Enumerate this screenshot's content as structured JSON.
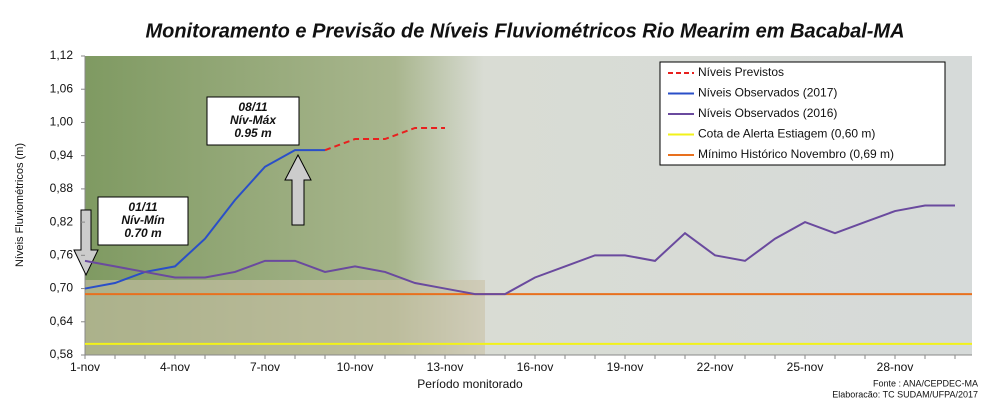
{
  "chart_data": {
    "type": "line",
    "title": "Monitoramento e Previsão de Níveis Fluviométricos Rio Mearim em  Bacabal-MA",
    "y_label": "Níveis Fluviométricos (m)",
    "x_label": "Período monitorado",
    "categories": [
      "1-nov",
      null,
      null,
      "4-nov",
      null,
      null,
      "7-nov",
      null,
      null,
      "10-nov",
      null,
      null,
      "13-nov",
      null,
      null,
      "16-nov",
      null,
      null,
      "19-nov",
      null,
      null,
      "22-nov",
      null,
      null,
      "25-nov",
      null,
      null,
      "28-nov",
      null,
      null
    ],
    "ylim": [
      0.58,
      1.12
    ],
    "yticks": [
      {
        "value": 0.58,
        "label": "0,58"
      },
      {
        "value": 0.64,
        "label": "0,64"
      },
      {
        "value": 0.7,
        "label": "0,70"
      },
      {
        "value": 0.76,
        "label": "0,76"
      },
      {
        "value": 0.82,
        "label": "0,82"
      },
      {
        "value": 0.88,
        "label": "0,88"
      },
      {
        "value": 0.94,
        "label": "0,94"
      },
      {
        "value": 1.0,
        "label": "1,00"
      },
      {
        "value": 1.06,
        "label": "1,06"
      },
      {
        "value": 1.12,
        "label": "1,12"
      }
    ],
    "series": [
      {
        "name": "Níveis Previstos",
        "color": "#e8201e",
        "dashed": true,
        "values": [
          null,
          null,
          null,
          null,
          null,
          null,
          null,
          null,
          0.95,
          0.97,
          0.97,
          0.99,
          0.99,
          null,
          null,
          null,
          null,
          null,
          null,
          null,
          null,
          null,
          null,
          null,
          null,
          null,
          null,
          null,
          null,
          null
        ]
      },
      {
        "name": "Níveis Observados (2017)",
        "color": "#2a4fc8",
        "values": [
          0.7,
          0.71,
          0.73,
          0.74,
          0.79,
          0.86,
          0.92,
          0.95,
          0.95,
          null,
          null,
          null,
          null,
          null,
          null,
          null,
          null,
          null,
          null,
          null,
          null,
          null,
          null,
          null,
          null,
          null,
          null,
          null,
          null,
          null
        ]
      },
      {
        "name": "Níveis Observados (2016)",
        "color": "#6a4a9e",
        "values": [
          0.75,
          0.74,
          0.73,
          0.72,
          0.72,
          0.73,
          0.75,
          0.75,
          0.73,
          0.74,
          0.73,
          0.71,
          0.7,
          0.69,
          0.69,
          0.72,
          0.74,
          0.76,
          0.76,
          0.75,
          0.8,
          0.76,
          0.75,
          0.79,
          0.82,
          0.8,
          0.82,
          0.84,
          0.85,
          0.85
        ]
      }
    ],
    "reference_lines": [
      {
        "name": "Cota de Alerta Estiagem (0,60 m)",
        "value": 0.6,
        "color": "#f2f21a"
      },
      {
        "name": "Mínimo Histórico Novembro (0,69 m)",
        "value": 0.69,
        "color": "#e8701e"
      }
    ],
    "annotations": [
      {
        "date": "08/11",
        "label": "Nív-Máx",
        "level": "0.95 m"
      },
      {
        "date": "01/11",
        "label": "Nív-Mín",
        "level": "0.70 m"
      }
    ],
    "source": "Fonte : ANA/CEPDEC-MA",
    "credit": "Elaboracão: TC SUDAM/UFPA/2017"
  }
}
